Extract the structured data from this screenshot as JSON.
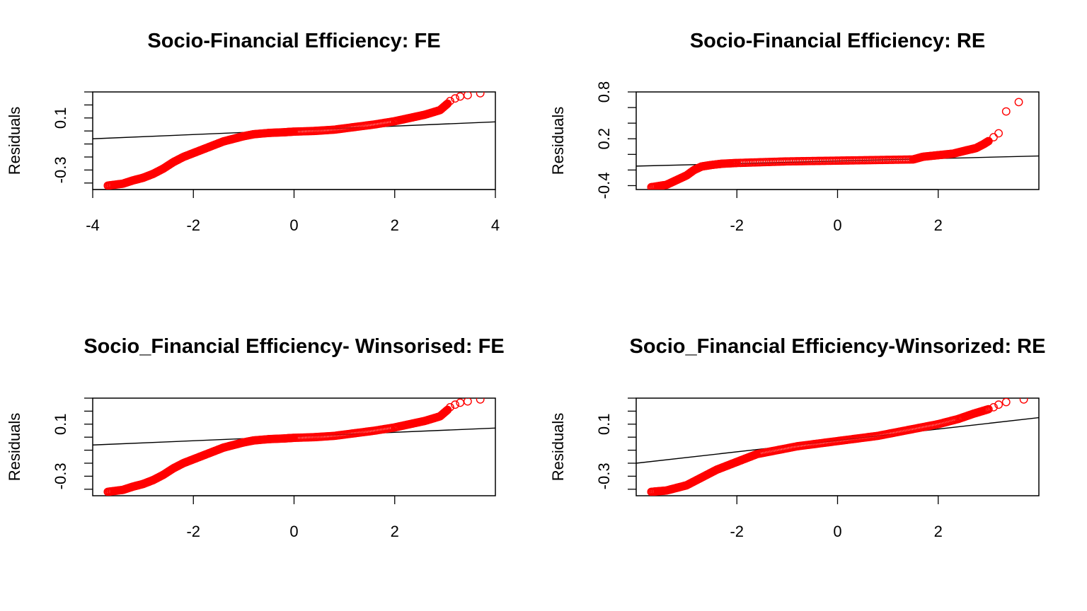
{
  "chart_data": [
    {
      "type": "scatter",
      "title": "Socio-Financial Efficiency: FE",
      "xlabel": "",
      "ylabel": "Residuals",
      "xlim": [
        -4.0,
        4.0
      ],
      "ylim": [
        -0.45,
        0.3
      ],
      "x_ticks": [
        "-4",
        "-2",
        "0",
        "2",
        "4"
      ],
      "x_tick_values": [
        -4,
        -2,
        0,
        2,
        4
      ],
      "y_ticks": [
        "-0.3",
        "0.1"
      ],
      "y_tick_values": [
        -0.3,
        0.1
      ],
      "y_minor_ticks": [
        -0.4,
        -0.3,
        -0.2,
        -0.1,
        0.0,
        0.1,
        0.2,
        0.3
      ],
      "grid": false,
      "point_color": "#ff0000",
      "line_color": "#000000",
      "reference_line": {
        "x": [
          -4.0,
          4.0
        ],
        "y": [
          -0.06,
          0.07
        ]
      },
      "quantile_curve": {
        "x": [
          -3.7,
          -3.4,
          -3.2,
          -3.0,
          -2.8,
          -2.6,
          -2.4,
          -2.2,
          -2.0,
          -1.8,
          -1.6,
          -1.4,
          -1.2,
          -1.0,
          -0.8,
          -0.5,
          -0.2,
          0.0,
          0.4,
          0.8,
          1.2,
          1.6,
          2.0,
          2.3,
          2.6,
          2.9,
          3.05
        ],
        "y": [
          -0.42,
          -0.405,
          -0.38,
          -0.36,
          -0.33,
          -0.29,
          -0.24,
          -0.2,
          -0.17,
          -0.14,
          -0.11,
          -0.08,
          -0.06,
          -0.04,
          -0.025,
          -0.015,
          -0.01,
          -0.005,
          0.0,
          0.01,
          0.03,
          0.05,
          0.075,
          0.1,
          0.125,
          0.16,
          0.21
        ]
      },
      "tail_points": {
        "x": [
          3.1,
          3.2,
          3.3,
          3.45,
          3.7
        ],
        "y": [
          0.23,
          0.25,
          0.265,
          0.275,
          0.29
        ]
      }
    },
    {
      "type": "scatter",
      "title": "Socio-Financial Efficiency: RE",
      "xlabel": "",
      "ylabel": "Residuals",
      "xlim": [
        -4.0,
        4.0
      ],
      "ylim": [
        -0.45,
        0.8
      ],
      "x_ticks": [
        "-2",
        "0",
        "2"
      ],
      "x_tick_values": [
        -2,
        0,
        2
      ],
      "y_ticks": [
        "-0.4",
        "0.2",
        "0.8"
      ],
      "y_tick_values": [
        -0.4,
        0.2,
        0.8
      ],
      "y_minor_ticks": [
        -0.4,
        -0.2,
        0.0,
        0.2,
        0.4,
        0.6,
        0.8
      ],
      "grid": false,
      "point_color": "#ff0000",
      "line_color": "#000000",
      "reference_line": {
        "x": [
          -4.0,
          4.0
        ],
        "y": [
          -0.15,
          -0.02
        ]
      },
      "quantile_curve": {
        "x": [
          -3.7,
          -3.4,
          -3.2,
          -3.0,
          -2.85,
          -2.7,
          -2.5,
          -2.3,
          -2.0,
          -1.5,
          -1.0,
          -0.5,
          0.0,
          0.5,
          1.0,
          1.5,
          1.7,
          2.0,
          2.3,
          2.55,
          2.75,
          2.9,
          3.0
        ],
        "y": [
          -0.42,
          -0.39,
          -0.33,
          -0.27,
          -0.2,
          -0.155,
          -0.135,
          -0.12,
          -0.11,
          -0.1,
          -0.09,
          -0.085,
          -0.08,
          -0.075,
          -0.07,
          -0.065,
          -0.03,
          -0.01,
          0.01,
          0.05,
          0.08,
          0.13,
          0.17
        ]
      },
      "tail_points": {
        "x": [
          3.1,
          3.2,
          3.35,
          3.6
        ],
        "y": [
          0.22,
          0.27,
          0.55,
          0.67
        ]
      }
    },
    {
      "type": "scatter",
      "title": "Socio_Financial Efficiency- Winsorised: FE",
      "xlabel": "",
      "ylabel": "Residuals",
      "xlim": [
        -4.0,
        4.0
      ],
      "ylim": [
        -0.45,
        0.3
      ],
      "x_ticks": [
        "-2",
        "0",
        "2"
      ],
      "x_tick_values": [
        -2,
        0,
        2
      ],
      "y_ticks": [
        "-0.3",
        "0.1"
      ],
      "y_tick_values": [
        -0.3,
        0.1
      ],
      "y_minor_ticks": [
        -0.4,
        -0.3,
        -0.2,
        -0.1,
        0.0,
        0.1,
        0.2,
        0.3
      ],
      "grid": false,
      "point_color": "#ff0000",
      "line_color": "#000000",
      "reference_line": {
        "x": [
          -4.0,
          4.0
        ],
        "y": [
          -0.06,
          0.07
        ]
      },
      "quantile_curve": {
        "x": [
          -3.7,
          -3.4,
          -3.2,
          -3.0,
          -2.8,
          -2.6,
          -2.4,
          -2.2,
          -2.0,
          -1.8,
          -1.6,
          -1.4,
          -1.2,
          -1.0,
          -0.8,
          -0.5,
          -0.2,
          0.0,
          0.4,
          0.8,
          1.2,
          1.6,
          2.0,
          2.3,
          2.6,
          2.9,
          3.05
        ],
        "y": [
          -0.42,
          -0.405,
          -0.38,
          -0.36,
          -0.33,
          -0.29,
          -0.24,
          -0.2,
          -0.17,
          -0.14,
          -0.11,
          -0.08,
          -0.06,
          -0.04,
          -0.025,
          -0.015,
          -0.01,
          -0.005,
          0.0,
          0.01,
          0.03,
          0.05,
          0.075,
          0.1,
          0.125,
          0.16,
          0.21
        ]
      },
      "tail_points": {
        "x": [
          3.1,
          3.2,
          3.3,
          3.45,
          3.7
        ],
        "y": [
          0.23,
          0.25,
          0.265,
          0.275,
          0.29
        ]
      }
    },
    {
      "type": "scatter",
      "title": "Socio_Financial Efficiency-Winsorized: RE",
      "xlabel": "",
      "ylabel": "Residuals",
      "xlim": [
        -4.0,
        4.0
      ],
      "ylim": [
        -0.45,
        0.3
      ],
      "x_ticks": [
        "-2",
        "0",
        "2"
      ],
      "x_tick_values": [
        -2,
        0,
        2
      ],
      "y_ticks": [
        "-0.3",
        "0.1"
      ],
      "y_tick_values": [
        -0.3,
        0.1
      ],
      "y_minor_ticks": [
        -0.4,
        -0.3,
        -0.2,
        -0.1,
        0.0,
        0.1,
        0.2,
        0.3
      ],
      "grid": false,
      "point_color": "#ff0000",
      "line_color": "#000000",
      "reference_line": {
        "x": [
          -4.0,
          4.0
        ],
        "y": [
          -0.2,
          0.15
        ]
      },
      "quantile_curve": {
        "x": [
          -3.7,
          -3.4,
          -3.2,
          -3.0,
          -2.8,
          -2.6,
          -2.4,
          -2.2,
          -2.0,
          -1.8,
          -1.6,
          -1.2,
          -0.8,
          -0.4,
          0.0,
          0.4,
          0.8,
          1.2,
          1.6,
          2.0,
          2.4,
          2.7,
          3.0
        ],
        "y": [
          -0.42,
          -0.41,
          -0.39,
          -0.37,
          -0.33,
          -0.29,
          -0.25,
          -0.22,
          -0.19,
          -0.16,
          -0.13,
          -0.1,
          -0.07,
          -0.05,
          -0.03,
          -0.01,
          0.01,
          0.04,
          0.07,
          0.1,
          0.14,
          0.18,
          0.215
        ]
      },
      "tail_points": {
        "x": [
          3.1,
          3.2,
          3.35,
          3.7
        ],
        "y": [
          0.23,
          0.25,
          0.27,
          0.29
        ]
      }
    }
  ]
}
